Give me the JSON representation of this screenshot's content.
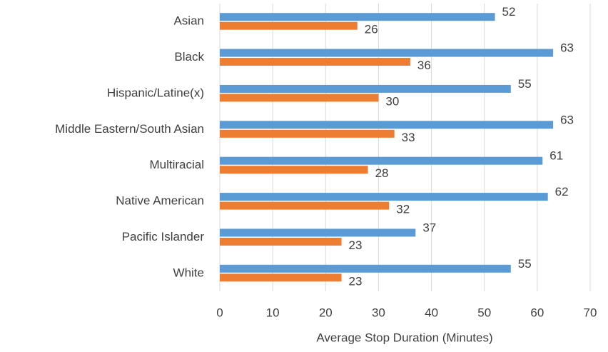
{
  "chart_data": {
    "type": "hbar",
    "x_label": "Average Stop Duration (Minutes)",
    "categories": [
      "Asian",
      "Black",
      "Hispanic/Latine(x)",
      "Middle Eastern/South Asian",
      "Multiracial",
      "Native American",
      "Pacific Islander",
      "White"
    ],
    "series": [
      {
        "color": "#5b9bd5",
        "values": [
          52,
          63,
          55,
          63,
          61,
          62,
          37,
          55
        ]
      },
      {
        "color": "#ed7d31",
        "values": [
          26,
          36,
          30,
          33,
          28,
          32,
          23,
          23
        ]
      }
    ],
    "xlim": [
      0,
      70
    ],
    "xticks": [
      0,
      10,
      20,
      30,
      40,
      50,
      60,
      70
    ],
    "grid": true
  }
}
